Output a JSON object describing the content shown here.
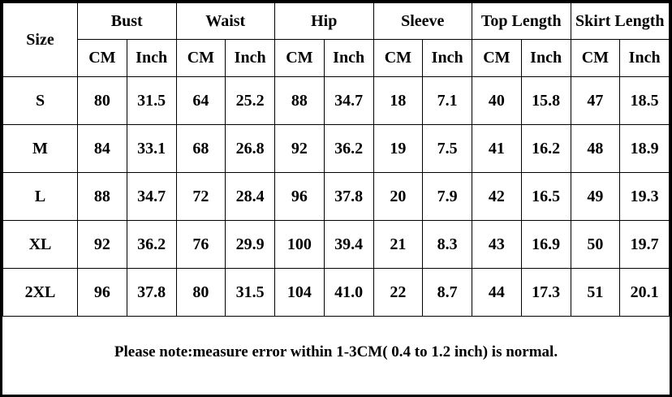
{
  "table": {
    "size_header": "Size",
    "groups": [
      "Bust",
      "Waist",
      "Hip",
      "Sleeve",
      "Top Length",
      "Skirt Length"
    ],
    "units": [
      "CM",
      "Inch"
    ],
    "rows": [
      [
        "S",
        "80",
        "31.5",
        "64",
        "25.2",
        "88",
        "34.7",
        "18",
        "7.1",
        "40",
        "15.8",
        "47",
        "18.5"
      ],
      [
        "M",
        "84",
        "33.1",
        "68",
        "26.8",
        "92",
        "36.2",
        "19",
        "7.5",
        "41",
        "16.2",
        "48",
        "18.9"
      ],
      [
        "L",
        "88",
        "34.7",
        "72",
        "28.4",
        "96",
        "37.8",
        "20",
        "7.9",
        "42",
        "16.5",
        "49",
        "19.3"
      ],
      [
        "XL",
        "92",
        "36.2",
        "76",
        "29.9",
        "100",
        "39.4",
        "21",
        "8.3",
        "43",
        "16.9",
        "50",
        "19.7"
      ],
      [
        "2XL",
        "96",
        "37.8",
        "80",
        "31.5",
        "104",
        "41.0",
        "22",
        "8.7",
        "44",
        "17.3",
        "51",
        "20.1"
      ]
    ]
  },
  "note": "Please note:measure error within 1-3CM( 0.4 to 1.2 inch) is normal."
}
